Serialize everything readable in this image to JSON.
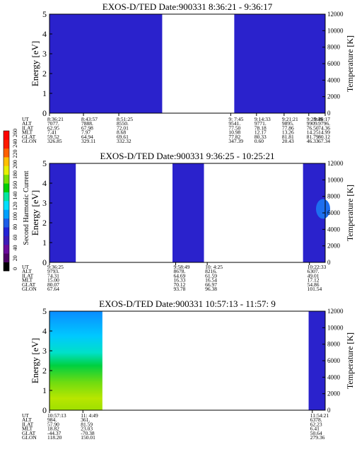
{
  "colorbar": {
    "label": "Second Harmonic Current",
    "ticks": [
      "0",
      "20",
      "40",
      "60",
      "80",
      "100",
      "120",
      "140",
      "160",
      "180",
      "200",
      "220",
      "240",
      "260"
    ],
    "colors": [
      "#000000",
      "#4d0066",
      "#6a0a9c",
      "#3d1ab8",
      "#2323d6",
      "#1d5de8",
      "#00a0ff",
      "#00e0ff",
      "#00e6a0",
      "#00d000",
      "#7ae000",
      "#e6f000",
      "#ffc000",
      "#ff6000",
      "#ff1a00",
      "#ff0000"
    ]
  },
  "chart_data": [
    {
      "type": "heatmap",
      "title": "EXOS-D/TED   Date:900331   8:36:21 - 9:36:17",
      "ylabel": "Energy [eV]",
      "ylabel_right": "Temperature [K]",
      "ylim": [
        0,
        5
      ],
      "ylim_right": [
        0,
        12000
      ],
      "yticks": [
        "0",
        "1",
        "2",
        "3",
        "4",
        "5"
      ],
      "yticks_right": [
        "0",
        "2000",
        "4000",
        "6000",
        "8000",
        "10000",
        "12000"
      ],
      "x_range_seconds": [
        0,
        3596
      ],
      "data_segments": [
        {
          "start_s": 0,
          "end_s": 1470,
          "fill": "#2a22cc"
        },
        {
          "start_s": 2410,
          "end_s": 3596,
          "fill": "#2a22cc"
        }
      ],
      "orbit_labels": [
        "UT",
        "ALT",
        "ILAT",
        "MLT",
        "GLAT",
        "GLON"
      ],
      "orbit_columns": [
        {
          "x_s": 0,
          "values": [
            "8:36:21",
            "7077.",
            "62.95",
            "7.41",
            "59.52",
            "326.85"
          ]
        },
        {
          "x_s": 443,
          "values": [
            "8:43:57",
            "7888.",
            "67.98",
            "7.97",
            "64.94",
            "329.11"
          ]
        },
        {
          "x_s": 904,
          "values": [
            "8:51:25",
            "8550.",
            "72.01",
            "8.68",
            "69.61",
            "332.32"
          ]
        },
        {
          "x_s": 2364,
          "values": [
            "9: 7:45",
            "9541.",
            "77.50",
            "10.98",
            "77.82",
            "347.39"
          ]
        },
        {
          "x_s": 2700,
          "values": [
            "9:14:33",
            "9771.",
            "78.18",
            "12.17",
            "80.33",
            "0.60"
          ]
        },
        {
          "x_s": 3060,
          "values": [
            "9:21:21",
            "9895.",
            "77.86",
            "13.26",
            "81.81",
            "20.43"
          ]
        },
        {
          "x_s": 3382,
          "values": [
            "9:28:49",
            "9909.",
            "76.50",
            "14.25",
            "81.79",
            "46.33"
          ]
        },
        {
          "x_s": 3596,
          "values": [
            "9:36:17",
            "9796.",
            "74.36",
            "14.99",
            "80.12",
            "67.34"
          ]
        }
      ]
    },
    {
      "type": "heatmap",
      "title": "EXOS-D/TED   Date:900331   9:36:25 - 10:25:21",
      "ylabel": "Energy [eV]",
      "ylabel_right": "Temperature [K]",
      "ylim": [
        0,
        5
      ],
      "ylim_right": [
        0,
        12000
      ],
      "yticks": [
        "0",
        "1",
        "2",
        "3",
        "4",
        "5"
      ],
      "yticks_right": [
        "0",
        "2000",
        "4000",
        "6000",
        "8000",
        "10000",
        "12000"
      ],
      "x_range_seconds": [
        0,
        2936
      ],
      "data_segments": [
        {
          "start_s": 0,
          "end_s": 280,
          "fill": "#2a22cc"
        },
        {
          "start_s": 1310,
          "end_s": 1645,
          "fill": "#2a22cc"
        },
        {
          "start_s": 2700,
          "end_s": 2936,
          "fill": "#2a22cc",
          "blob": {
            "y": 2.7,
            "fill": "#1d6ef0"
          }
        }
      ],
      "orbit_labels": [
        "UT",
        "ALT",
        "ILAT",
        "MLT",
        "GLAT",
        "GLON"
      ],
      "orbit_columns": [
        {
          "x_s": 0,
          "values": [
            "9:36:25",
            "9793.",
            "74.31",
            "15.00",
            "80.07",
            "67.64"
          ]
        },
        {
          "x_s": 1344,
          "values": [
            "9:58:49",
            "8678.",
            "64.69",
            "16.33",
            "70.12",
            "93.78"
          ]
        },
        {
          "x_s": 1680,
          "values": [
            "10: 4:25",
            "8216.",
            "61.59",
            "16.54",
            "66.97",
            "96.38"
          ]
        },
        {
          "x_s": 2768,
          "values": [
            "10:22:33",
            "6307.",
            "49.01",
            "17.12",
            "54.86",
            "101.54"
          ]
        }
      ]
    },
    {
      "type": "heatmap",
      "title": "EXOS-D/TED   Date:900331   10:57:13 - 11:57: 9",
      "ylabel": "Energy [eV]",
      "ylabel_right": "Temperature [K]",
      "ylim": [
        0,
        5
      ],
      "ylim_right": [
        0,
        12000
      ],
      "yticks": [
        "0",
        "1",
        "2",
        "3",
        "4",
        "5"
      ],
      "yticks_right": [
        "0",
        "2000",
        "4000",
        "6000",
        "8000",
        "10000",
        "12000"
      ],
      "x_range_seconds": [
        0,
        3596
      ],
      "data_segments": [
        {
          "start_s": 0,
          "end_s": 690,
          "fill": "gradient"
        },
        {
          "start_s": 3380,
          "end_s": 3596,
          "fill": "#2a22cc"
        }
      ],
      "orbit_labels": [
        "UT",
        "ALT",
        "ILAT",
        "MLT",
        "GLAT",
        "GLON"
      ],
      "orbit_columns": [
        {
          "x_s": 0,
          "values": [
            "10:57:13",
            "984.",
            "57.90",
            "18.82",
            "-44.37",
            "118.20"
          ]
        },
        {
          "x_s": 436,
          "values": [
            "11: 4:49",
            "361.",
            "81.59",
            "23.03",
            "-70.38",
            "150.01"
          ]
        },
        {
          "x_s": 3428,
          "values": [
            "11:54:21",
            "6378.",
            "62.23",
            "6.41",
            "50.64",
            "279.36"
          ]
        }
      ]
    }
  ]
}
